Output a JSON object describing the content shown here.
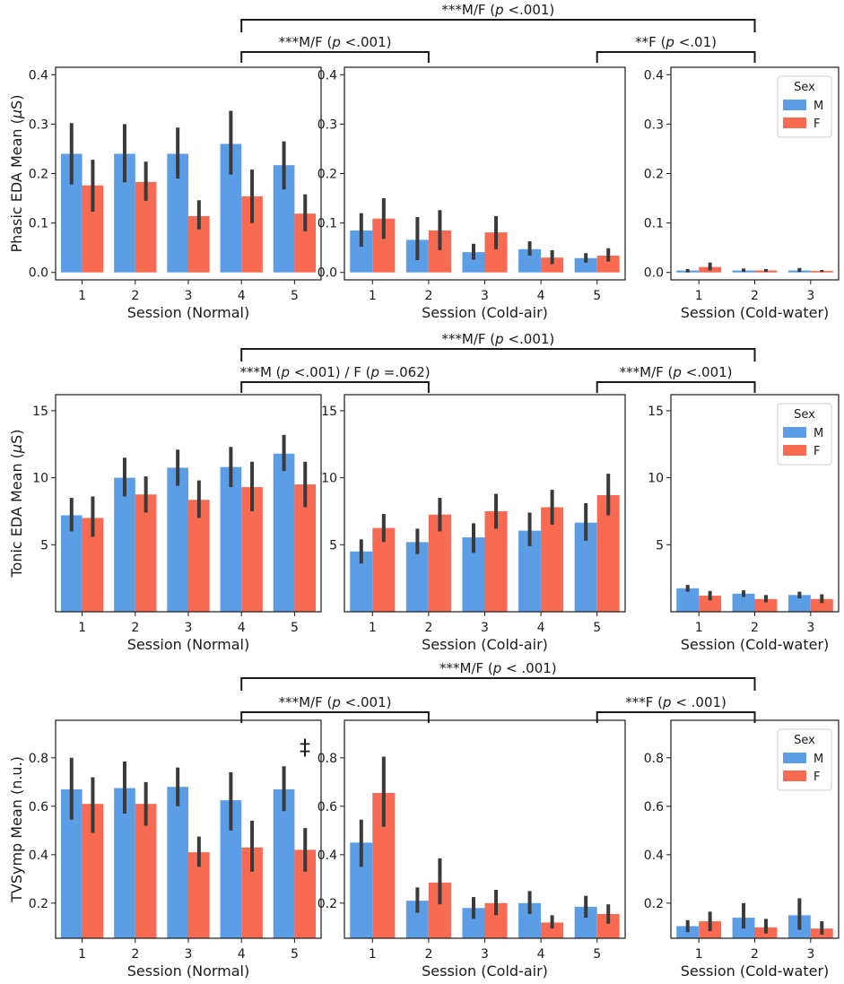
{
  "colors": {
    "M": "#5b9ee6",
    "F": "#f96a52",
    "error_bar": "#3a3a3a"
  },
  "legend": {
    "title": "Sex",
    "entries": [
      "M",
      "F"
    ],
    "placement": "top-right of cold-water panels"
  },
  "chart_data": [
    {
      "type": "bar",
      "row": "phasic",
      "ylabel": "Phasic EDA Mean (μS)",
      "ylim": [
        -0.015,
        0.415
      ],
      "yticks": [
        "0.0",
        "0.1",
        "0.2",
        "0.3",
        "0.4"
      ],
      "ytick_values": [
        0,
        0.1,
        0.2,
        0.3,
        0.4
      ],
      "brackets": [
        {
          "label": "***M/F (p <.001)",
          "from_panel": 0,
          "from_cat": 3,
          "to_panel": 2,
          "to_cat": 1,
          "level": 0
        },
        {
          "label": "***M/F (p <.001)",
          "from_panel": 0,
          "from_cat": 3,
          "to_panel": 1,
          "to_cat": 1,
          "level": 1
        },
        {
          "label": "**F (p <.01)",
          "from_panel": 1,
          "from_cat": 4,
          "to_panel": 2,
          "to_cat": 1,
          "level": 1
        }
      ],
      "panels": [
        {
          "xlabel": "Session (Normal)",
          "categories": [
            "1",
            "2",
            "3",
            "4",
            "5"
          ],
          "series": [
            {
              "name": "M",
              "values": [
                0.24,
                0.24,
                0.24,
                0.26,
                0.217
              ],
              "err_low": [
                0.178,
                0.182,
                0.19,
                0.198,
                0.168
              ],
              "err_high": [
                0.302,
                0.3,
                0.293,
                0.327,
                0.265
              ]
            },
            {
              "name": "F",
              "values": [
                0.176,
                0.183,
                0.114,
                0.154,
                0.119
              ],
              "err_low": [
                0.123,
                0.145,
                0.087,
                0.1,
                0.083
              ],
              "err_high": [
                0.228,
                0.224,
                0.146,
                0.208,
                0.158
              ]
            }
          ]
        },
        {
          "xlabel": "Session (Cold-air)",
          "categories": [
            "1",
            "2",
            "3",
            "4",
            "5"
          ],
          "series": [
            {
              "name": "M",
              "values": [
                0.085,
                0.066,
                0.041,
                0.047,
                0.029
              ],
              "err_low": [
                0.052,
                0.025,
                0.026,
                0.034,
                0.02
              ],
              "err_high": [
                0.12,
                0.112,
                0.058,
                0.063,
                0.039
              ]
            },
            {
              "name": "F",
              "values": [
                0.109,
                0.085,
                0.081,
                0.03,
                0.034
              ],
              "err_low": [
                0.068,
                0.045,
                0.047,
                0.017,
                0.022
              ],
              "err_high": [
                0.15,
                0.126,
                0.114,
                0.045,
                0.049
              ]
            }
          ]
        },
        {
          "xlabel": "Session (Cold-water)",
          "categories": [
            "1",
            "2",
            "3"
          ],
          "legend": true,
          "series": [
            {
              "name": "M",
              "values": [
                0.004,
                0.004,
                0.004
              ],
              "err_low": [
                0.0,
                0.001,
                0.001
              ],
              "err_high": [
                0.007,
                0.008,
                0.009
              ]
            },
            {
              "name": "F",
              "values": [
                0.011,
                0.004,
                0.003
              ],
              "err_low": [
                0.004,
                0.001,
                0.001
              ],
              "err_high": [
                0.02,
                0.007,
                0.005
              ]
            }
          ]
        }
      ]
    },
    {
      "type": "bar",
      "row": "tonic",
      "ylabel": "Tonic EDA Mean (μS)",
      "ylim": [
        0,
        16.2
      ],
      "yticks": [
        "5",
        "10",
        "15"
      ],
      "ytick_values": [
        5,
        10,
        15
      ],
      "brackets": [
        {
          "label": "***M/F (p <.001)",
          "from_panel": 0,
          "from_cat": 3,
          "to_panel": 2,
          "to_cat": 1,
          "level": 0
        },
        {
          "label": "***M (p <.001) / F (p =.062)",
          "from_panel": 0,
          "from_cat": 3,
          "to_panel": 1,
          "to_cat": 1,
          "level": 1
        },
        {
          "label": "***M/F (p <.001)",
          "from_panel": 1,
          "from_cat": 4,
          "to_panel": 2,
          "to_cat": 1,
          "level": 1
        }
      ],
      "panels": [
        {
          "xlabel": "Session (Normal)",
          "categories": [
            "1",
            "2",
            "3",
            "4",
            "5"
          ],
          "series": [
            {
              "name": "M",
              "values": [
                7.2,
                10.0,
                10.75,
                10.8,
                11.8
              ],
              "err_low": [
                6.0,
                8.6,
                9.4,
                9.3,
                10.5
              ],
              "err_high": [
                8.5,
                11.5,
                12.1,
                12.3,
                13.2
              ]
            },
            {
              "name": "F",
              "values": [
                7.0,
                8.75,
                8.35,
                9.3,
                9.5
              ],
              "err_low": [
                5.6,
                7.4,
                7.0,
                7.5,
                7.8
              ],
              "err_high": [
                8.6,
                10.1,
                9.8,
                11.2,
                11.2
              ]
            }
          ]
        },
        {
          "xlabel": "Session (Cold-air)",
          "categories": [
            "1",
            "2",
            "3",
            "4",
            "5"
          ],
          "series": [
            {
              "name": "M",
              "values": [
                4.5,
                5.2,
                5.55,
                6.05,
                6.65
              ],
              "err_low": [
                3.6,
                4.3,
                4.4,
                4.9,
                5.3
              ],
              "err_high": [
                5.4,
                6.2,
                6.6,
                7.4,
                8.1
              ]
            },
            {
              "name": "F",
              "values": [
                6.25,
                7.25,
                7.5,
                7.8,
                8.7
              ],
              "err_low": [
                5.2,
                6.0,
                6.2,
                6.5,
                7.2
              ],
              "err_high": [
                7.3,
                8.5,
                8.8,
                9.1,
                10.3
              ]
            }
          ]
        },
        {
          "xlabel": "Session (Cold-water)",
          "categories": [
            "1",
            "2",
            "3"
          ],
          "legend": true,
          "series": [
            {
              "name": "M",
              "values": [
                1.75,
                1.35,
                1.25
              ],
              "err_low": [
                1.5,
                1.1,
                1.0
              ],
              "err_high": [
                2.0,
                1.6,
                1.5
              ]
            },
            {
              "name": "F",
              "values": [
                1.2,
                0.95,
                0.95
              ],
              "err_low": [
                0.85,
                0.7,
                0.65
              ],
              "err_high": [
                1.55,
                1.25,
                1.3
              ]
            }
          ]
        }
      ]
    },
    {
      "type": "bar",
      "row": "tvsymp",
      "ylabel": "TVSymp Mean (n.u.)",
      "ylim": [
        0.055,
        0.955
      ],
      "yticks": [
        "0.2",
        "0.4",
        "0.6",
        "0.8"
      ],
      "ytick_values": [
        0.2,
        0.4,
        0.6,
        0.8
      ],
      "annotation": "‡",
      "brackets": [
        {
          "label": "***M/F (p < .001)",
          "from_panel": 0,
          "from_cat": 3,
          "to_panel": 2,
          "to_cat": 1,
          "level": 0
        },
        {
          "label": "***M/F (p <.001)",
          "from_panel": 0,
          "from_cat": 3,
          "to_panel": 1,
          "to_cat": 1,
          "level": 1
        },
        {
          "label": "***F (p < .001)",
          "from_panel": 1,
          "from_cat": 4,
          "to_panel": 2,
          "to_cat": 1,
          "level": 1
        }
      ],
      "panels": [
        {
          "xlabel": "Session (Normal)",
          "categories": [
            "1",
            "2",
            "3",
            "4",
            "5"
          ],
          "series": [
            {
              "name": "M",
              "values": [
                0.67,
                0.675,
                0.68,
                0.625,
                0.67
              ],
              "err_low": [
                0.545,
                0.57,
                0.6,
                0.5,
                0.58
              ],
              "err_high": [
                0.8,
                0.785,
                0.76,
                0.74,
                0.765
              ]
            },
            {
              "name": "F",
              "values": [
                0.61,
                0.61,
                0.41,
                0.43,
                0.42
              ],
              "err_low": [
                0.49,
                0.52,
                0.35,
                0.33,
                0.33
              ],
              "err_high": [
                0.72,
                0.7,
                0.475,
                0.54,
                0.51
              ]
            }
          ]
        },
        {
          "xlabel": "Session (Cold-air)",
          "categories": [
            "1",
            "2",
            "3",
            "4",
            "5"
          ],
          "series": [
            {
              "name": "M",
              "values": [
                0.45,
                0.21,
                0.18,
                0.2,
                0.185
              ],
              "err_low": [
                0.35,
                0.16,
                0.135,
                0.155,
                0.14
              ],
              "err_high": [
                0.545,
                0.265,
                0.225,
                0.25,
                0.23
              ]
            },
            {
              "name": "F",
              "values": [
                0.655,
                0.285,
                0.2,
                0.12,
                0.155
              ],
              "err_low": [
                0.515,
                0.195,
                0.15,
                0.095,
                0.115
              ],
              "err_high": [
                0.805,
                0.385,
                0.255,
                0.15,
                0.195
              ]
            }
          ]
        },
        {
          "xlabel": "Session (Cold-water)",
          "categories": [
            "1",
            "2",
            "3"
          ],
          "legend": true,
          "series": [
            {
              "name": "M",
              "values": [
                0.105,
                0.14,
                0.15
              ],
              "err_low": [
                0.08,
                0.095,
                0.09
              ],
              "err_high": [
                0.13,
                0.2,
                0.22
              ]
            },
            {
              "name": "F",
              "values": [
                0.125,
                0.1,
                0.095
              ],
              "err_low": [
                0.085,
                0.075,
                0.07
              ],
              "err_high": [
                0.165,
                0.135,
                0.125
              ]
            }
          ]
        }
      ]
    }
  ]
}
